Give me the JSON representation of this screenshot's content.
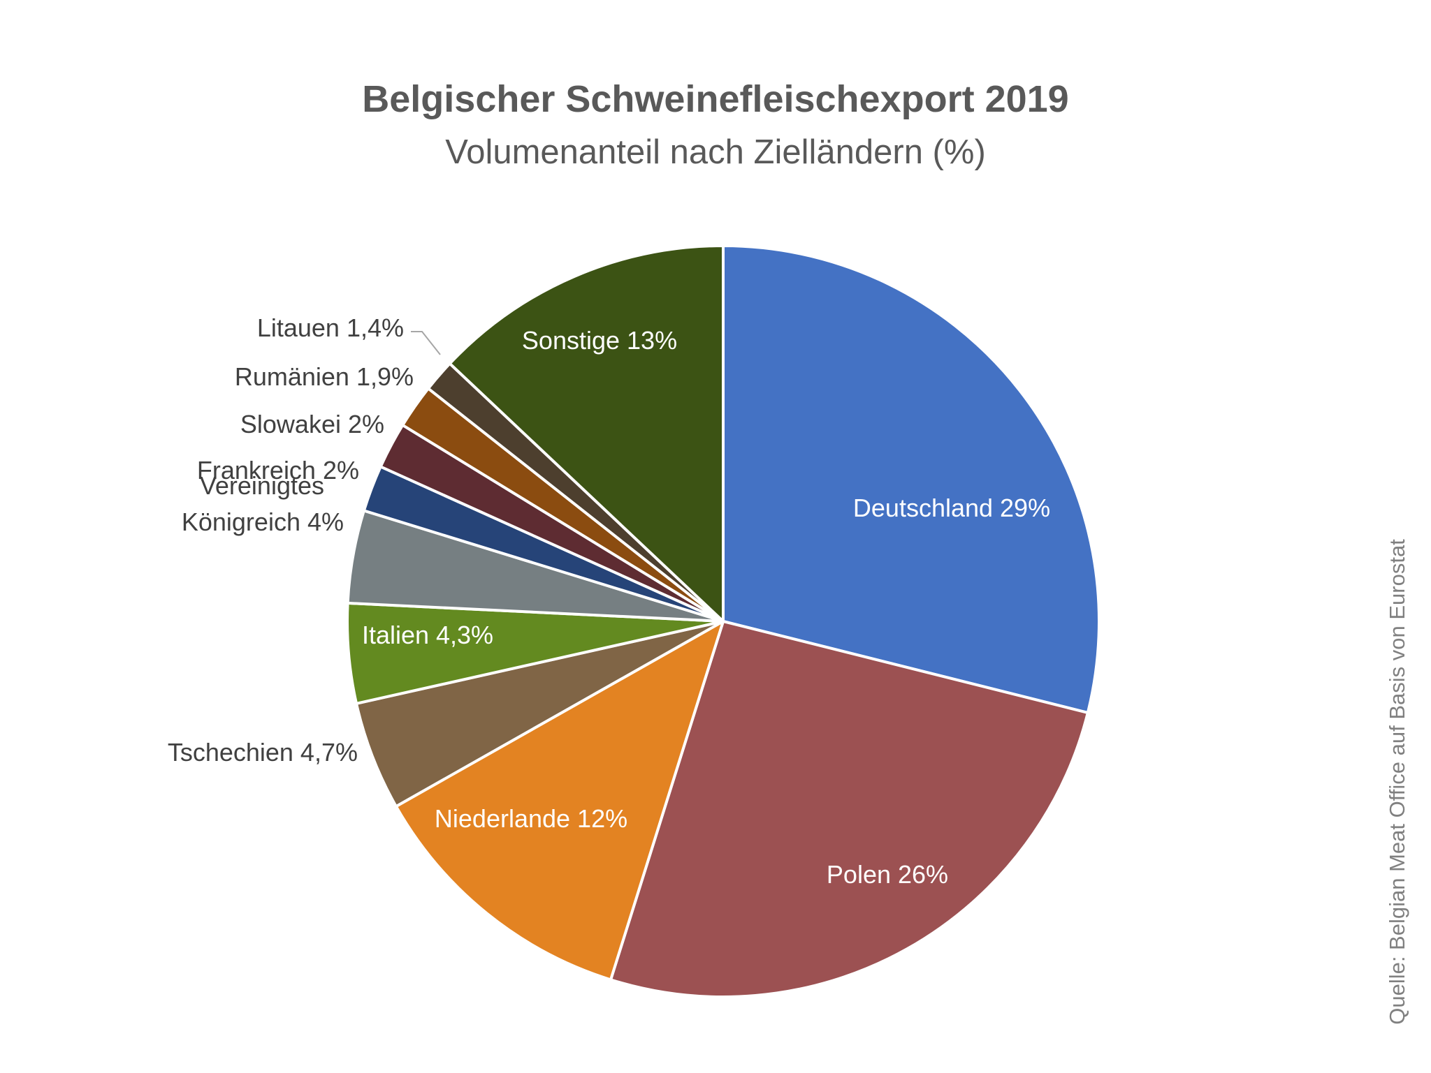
{
  "chart_data": {
    "type": "pie",
    "title": "Belgischer Schweinefleischexport 2019",
    "subtitle": "Volumenanteil nach Zielländern (%)",
    "slices": [
      {
        "label": "Deutschland 29%",
        "label_lines": [
          "Deutschland 29%"
        ],
        "value": 29,
        "color": "#4472C4",
        "label_color": "#ffffff"
      },
      {
        "label": "Polen 26%",
        "label_lines": [
          "Polen 26%"
        ],
        "value": 26,
        "color": "#9C5152",
        "label_color": "#ffffff"
      },
      {
        "label": "Niederlande 12%",
        "label_lines": [
          "Niederlande 12%"
        ],
        "value": 12,
        "color": "#E38322",
        "label_color": "#ffffff"
      },
      {
        "label": "Tschechien 4,7%",
        "label_lines": [
          "Tschechien 4,7%"
        ],
        "value": 4.7,
        "color": "#806546",
        "label_color": "#404040"
      },
      {
        "label": "Italien 4,3%",
        "label_lines": [
          "Italien 4,3%"
        ],
        "value": 4.3,
        "color": "#638A20",
        "label_color": "#ffffff"
      },
      {
        "label": "Vereinigtes Königreich 4%",
        "label_lines": [
          "Vereinigtes",
          "Königreich 4%"
        ],
        "value": 4,
        "color": "#767F82",
        "label_color": "#404040"
      },
      {
        "label": "Frankreich 2%",
        "label_lines": [
          "Frankreich 2%"
        ],
        "value": 2,
        "color": "#264478",
        "label_color": "#404040"
      },
      {
        "label": "Slowakei 2%",
        "label_lines": [
          "Slowakei 2%"
        ],
        "value": 2,
        "color": "#5E2C32",
        "label_color": "#404040"
      },
      {
        "label": "Rumänien 1,9%",
        "label_lines": [
          "Rumänien 1,9%"
        ],
        "value": 1.9,
        "color": "#8B4C10",
        "label_color": "#404040"
      },
      {
        "label": "Litauen 1,4%",
        "label_lines": [
          "Litauen 1,4%"
        ],
        "value": 1.4,
        "color": "#4D3F2E",
        "label_color": "#404040"
      },
      {
        "label": "Sonstige 13%",
        "label_lines": [
          "Sonstige 13%"
        ],
        "value": 13,
        "color": "#3C5314",
        "label_color": "#ffffff"
      }
    ],
    "start_angle": "12 o'clock",
    "direction": "clockwise",
    "legend": "none",
    "source": "Quelle: Belgian Meat Office auf Basis von Eurostat"
  }
}
